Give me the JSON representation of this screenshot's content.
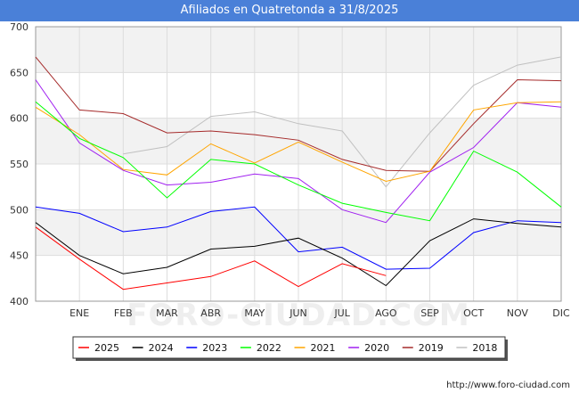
{
  "chart_data": {
    "type": "line",
    "title": "Afiliados en Quatretonda a 31/8/2025",
    "xlabel": "",
    "ylabel": "",
    "categories": [
      "",
      "ENE",
      "FEB",
      "MAR",
      "ABR",
      "MAY",
      "JUN",
      "JUL",
      "AGO",
      "SEP",
      "OCT",
      "NOV",
      "DIC"
    ],
    "ylim": [
      400,
      700
    ],
    "yticks": [
      400,
      450,
      500,
      550,
      600,
      650,
      700
    ],
    "grid": true,
    "legend_position": "bottom",
    "series": [
      {
        "name": "2025",
        "color": "#ff0000",
        "values": [
          481,
          446,
          413,
          420,
          427,
          444,
          416,
          441,
          428,
          null,
          null,
          null,
          null
        ]
      },
      {
        "name": "2024",
        "color": "#000000",
        "values": [
          486,
          450,
          430,
          437,
          457,
          460,
          469,
          447,
          417,
          466,
          490,
          485,
          481
        ]
      },
      {
        "name": "2023",
        "color": "#0000ff",
        "values": [
          503,
          496,
          476,
          481,
          498,
          503,
          454,
          459,
          435,
          436,
          475,
          488,
          486
        ]
      },
      {
        "name": "2022",
        "color": "#00ff00",
        "values": [
          618,
          578,
          557,
          513,
          555,
          550,
          527,
          507,
          497,
          488,
          564,
          541,
          503
        ]
      },
      {
        "name": "2021",
        "color": "#ffa500",
        "values": [
          612,
          582,
          544,
          538,
          572,
          551,
          574,
          552,
          531,
          542,
          609,
          617,
          618
        ]
      },
      {
        "name": "2020",
        "color": "#a020f0",
        "values": [
          642,
          573,
          543,
          527,
          530,
          539,
          534,
          500,
          486,
          541,
          568,
          617,
          612
        ]
      },
      {
        "name": "2019",
        "color": "#a52a2a",
        "values": [
          667,
          609,
          605,
          584,
          586,
          582,
          576,
          555,
          543,
          542,
          594,
          642,
          641
        ]
      },
      {
        "name": "2018",
        "color": "#c0c0c0",
        "values": [
          null,
          null,
          561,
          569,
          602,
          607,
          594,
          586,
          525,
          584,
          636,
          658,
          667
        ]
      }
    ]
  },
  "footer": {
    "url": "http://www.foro-ciudad.com"
  },
  "watermark": "FORO-CIUDAD.COM"
}
